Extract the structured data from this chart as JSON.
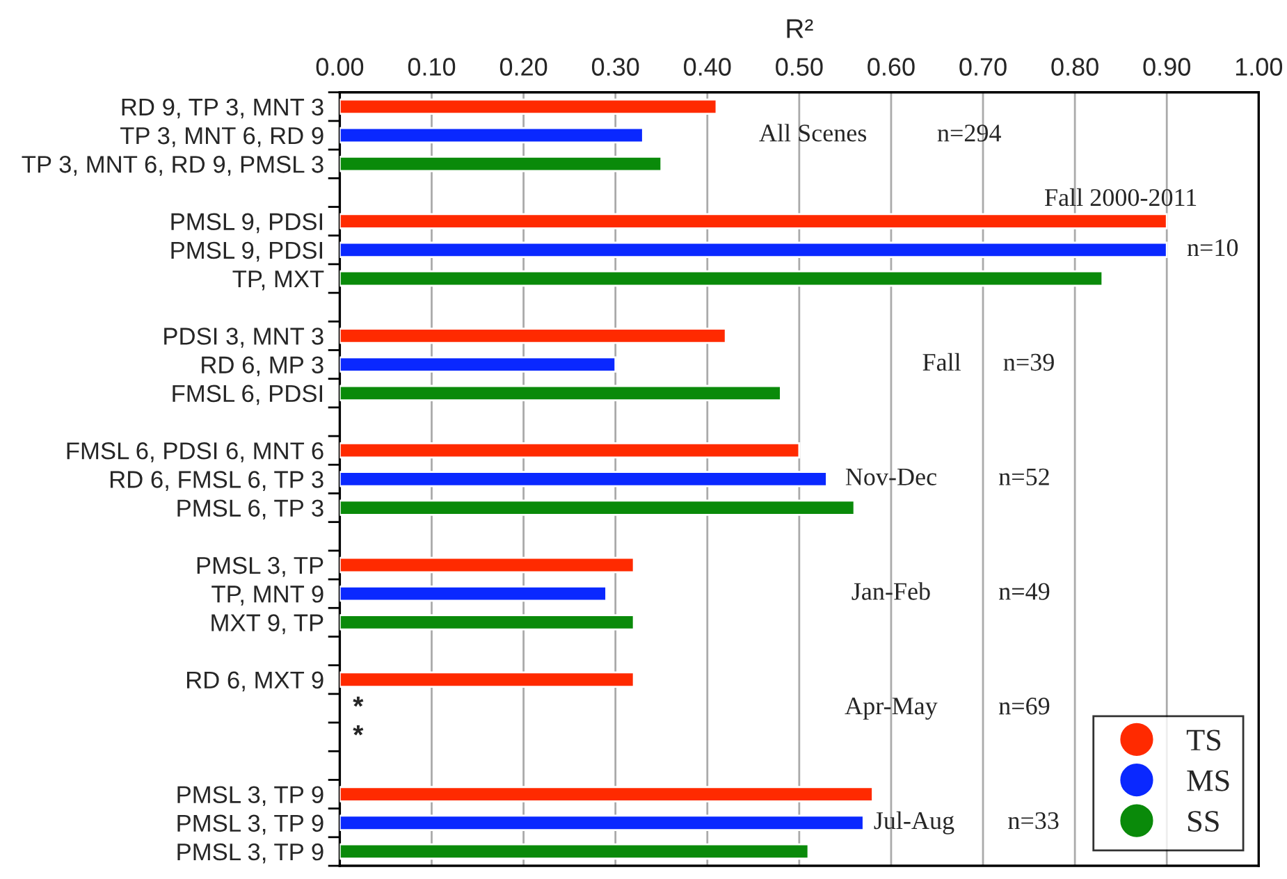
{
  "chart_data": {
    "type": "bar",
    "orientation": "horizontal",
    "xlabel": "R²",
    "categories": [
      "RD 9, TP 3, MNT 3",
      "TP 3, MNT 6, RD 9",
      "TP 3, MNT 6, RD 9, PMSL 3",
      null,
      "PMSL 9, PDSI",
      "PMSL 9, PDSI",
      "TP, MXT",
      null,
      "PDSI 3, MNT 3",
      "RD 6, MP 3",
      "FMSL 6, PDSI",
      null,
      "FMSL 6, PDSI 6, MNT 6",
      "RD 6, FMSL 6, TP 3",
      "PMSL 6, TP 3",
      null,
      "PMSL 3, TP",
      "TP, MNT 9",
      "MXT 9, TP",
      null,
      "RD 6, MXT 9",
      null,
      null,
      null,
      "PMSL 3, TP 9",
      "PMSL 3, TP 9",
      "PMSL 3, TP 9"
    ],
    "series": [
      {
        "name": "TS",
        "color": "#ff2a00",
        "values": [
          0.41,
          null,
          null,
          null,
          0.9,
          null,
          null,
          null,
          0.42,
          null,
          null,
          null,
          0.5,
          null,
          null,
          null,
          0.32,
          null,
          null,
          null,
          0.32,
          null,
          null,
          null,
          0.58,
          null,
          null
        ]
      },
      {
        "name": "MS",
        "color": "#0a28ff",
        "values": [
          null,
          0.33,
          null,
          null,
          null,
          0.9,
          null,
          null,
          null,
          0.3,
          null,
          null,
          null,
          0.53,
          null,
          null,
          null,
          0.29,
          null,
          null,
          null,
          null,
          null,
          null,
          null,
          0.57,
          null
        ]
      },
      {
        "name": "SS",
        "color": "#0a8a0a",
        "values": [
          null,
          null,
          0.35,
          null,
          null,
          null,
          0.83,
          null,
          null,
          null,
          0.48,
          null,
          null,
          null,
          0.56,
          null,
          null,
          null,
          0.32,
          null,
          null,
          null,
          null,
          null,
          null,
          null,
          0.51
        ]
      }
    ],
    "xlim": [
      0,
      1
    ],
    "xticks": [
      {
        "value": 0,
        "label": "0.00"
      },
      {
        "value": 0.1,
        "label": "0.10"
      },
      {
        "value": 0.2,
        "label": "0.20"
      },
      {
        "value": 0.3,
        "label": "0.30"
      },
      {
        "value": 0.4,
        "label": "0.40"
      },
      {
        "value": 0.5,
        "label": "0.50"
      },
      {
        "value": 0.6,
        "label": "0.60"
      },
      {
        "value": 0.7,
        "label": "0.70"
      },
      {
        "value": 0.8,
        "label": "0.80"
      },
      {
        "value": 0.9,
        "label": "0.90"
      },
      {
        "value": 1.0,
        "label": "1.00"
      }
    ],
    "grid": "x",
    "legend": "bottom right",
    "marker": "circle",
    "annotations": [
      "All Scenes",
      "n=294",
      "Fall 2000-2011",
      "n=10",
      "Fall",
      "n=39",
      "Nov-Dec",
      "n=52",
      "Jan-Feb",
      "n=49",
      "Apr-May",
      "n=69",
      "Jul-Aug",
      "n=33",
      "*",
      "*"
    ]
  }
}
